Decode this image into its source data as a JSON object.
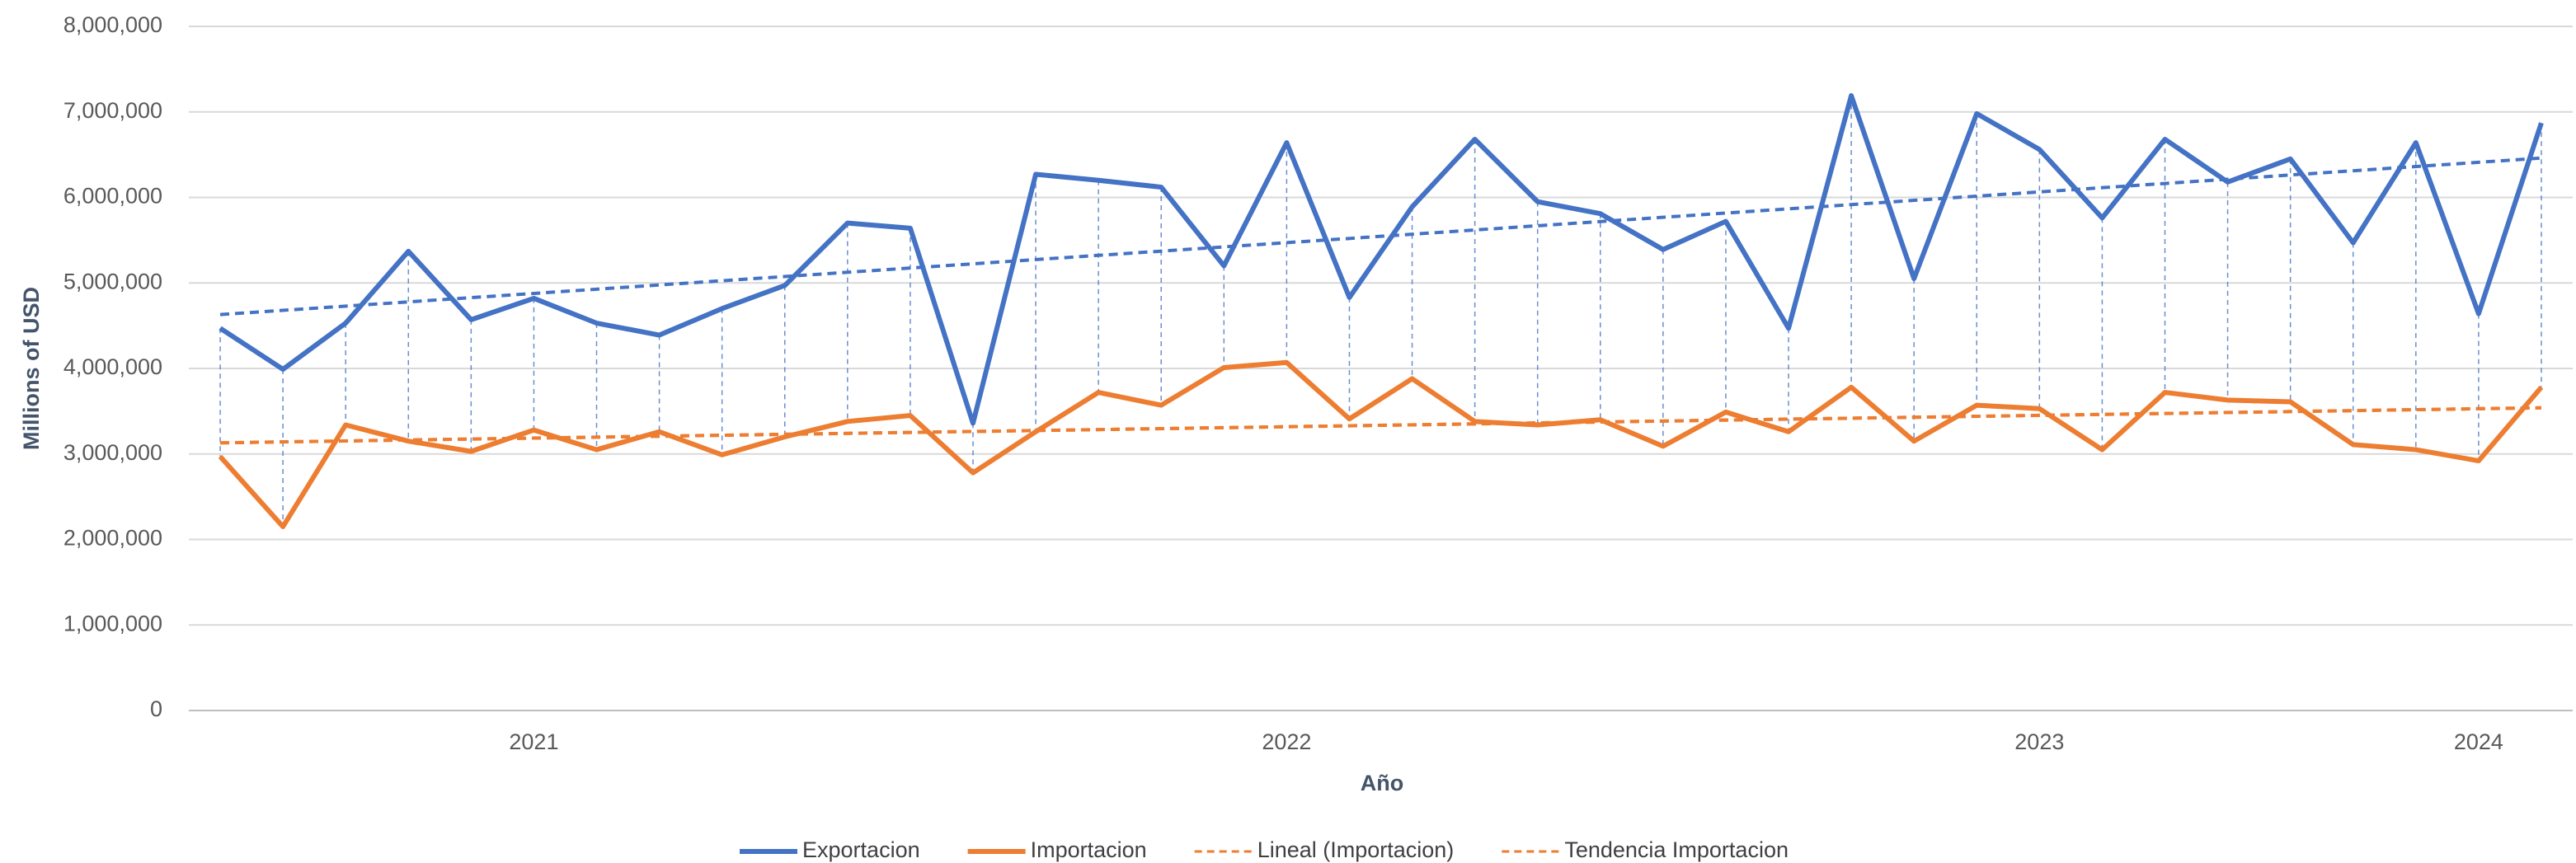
{
  "chart_data": {
    "type": "line",
    "y_axis_label": "Millions of USD",
    "x_axis_label": "Año",
    "categories": [
      null,
      null,
      null,
      null,
      null,
      "2021",
      null,
      null,
      null,
      null,
      null,
      null,
      null,
      null,
      null,
      null,
      null,
      "2022",
      null,
      null,
      null,
      null,
      null,
      null,
      null,
      null,
      null,
      null,
      null,
      "2023",
      null,
      null,
      null,
      null,
      null,
      null,
      "2024",
      null
    ],
    "series": [
      {
        "name": "Exportacion",
        "color": "#4472c4",
        "values": [
          4470000,
          3990000,
          4530000,
          5370000,
          4570000,
          4820000,
          4530000,
          4390000,
          4700000,
          4970000,
          5700000,
          5640000,
          3360000,
          6270000,
          6200000,
          6120000,
          5200000,
          6640000,
          4830000,
          5890000,
          6680000,
          5950000,
          5810000,
          5390000,
          5720000,
          4470000,
          7190000,
          5050000,
          6980000,
          6560000,
          5760000,
          6680000,
          6180000,
          6450000,
          5470000,
          6640000,
          4640000,
          6870000
        ]
      },
      {
        "name": "Importacion",
        "color": "#ed7d31",
        "values": [
          2970000,
          2150000,
          3340000,
          3150000,
          3030000,
          3280000,
          3050000,
          3260000,
          2990000,
          3200000,
          3380000,
          3450000,
          2780000,
          3260000,
          3720000,
          3570000,
          4010000,
          4070000,
          3410000,
          3880000,
          3380000,
          3340000,
          3400000,
          3090000,
          3490000,
          3260000,
          3780000,
          3150000,
          3570000,
          3530000,
          3050000,
          3720000,
          3630000,
          3610000,
          3110000,
          3050000,
          2920000,
          3780000
        ]
      }
    ],
    "trendlines": [
      {
        "color": "#4472c4",
        "from": 4630000,
        "to": 6460000
      },
      {
        "name": "Lineal (Importacion)",
        "color": "#ed7d31",
        "from": 3130000,
        "to": 3540000
      },
      {
        "name": "Tendencia Importacion",
        "color": "#ed7d31",
        "from": 3130000,
        "to": 3540000
      }
    ],
    "drop_lines": true,
    "ylim": [
      0,
      8000000
    ],
    "yticks": [
      0,
      {
        "value": 1000000,
        "label": "1,000,000"
      },
      {
        "value": 2000000,
        "label": "2,000,000"
      },
      {
        "value": 3000000,
        "label": "3,000,000"
      },
      {
        "value": 4000000,
        "label": "4,000,000"
      },
      {
        "value": 5000000,
        "label": "5,000,000"
      },
      {
        "value": 6000000,
        "label": "6,000,000"
      },
      {
        "value": 7000000,
        "label": "7,000,000"
      },
      {
        "value": 8000000,
        "label": "8,000,000"
      }
    ],
    "grid": true,
    "legend": "bottom"
  }
}
